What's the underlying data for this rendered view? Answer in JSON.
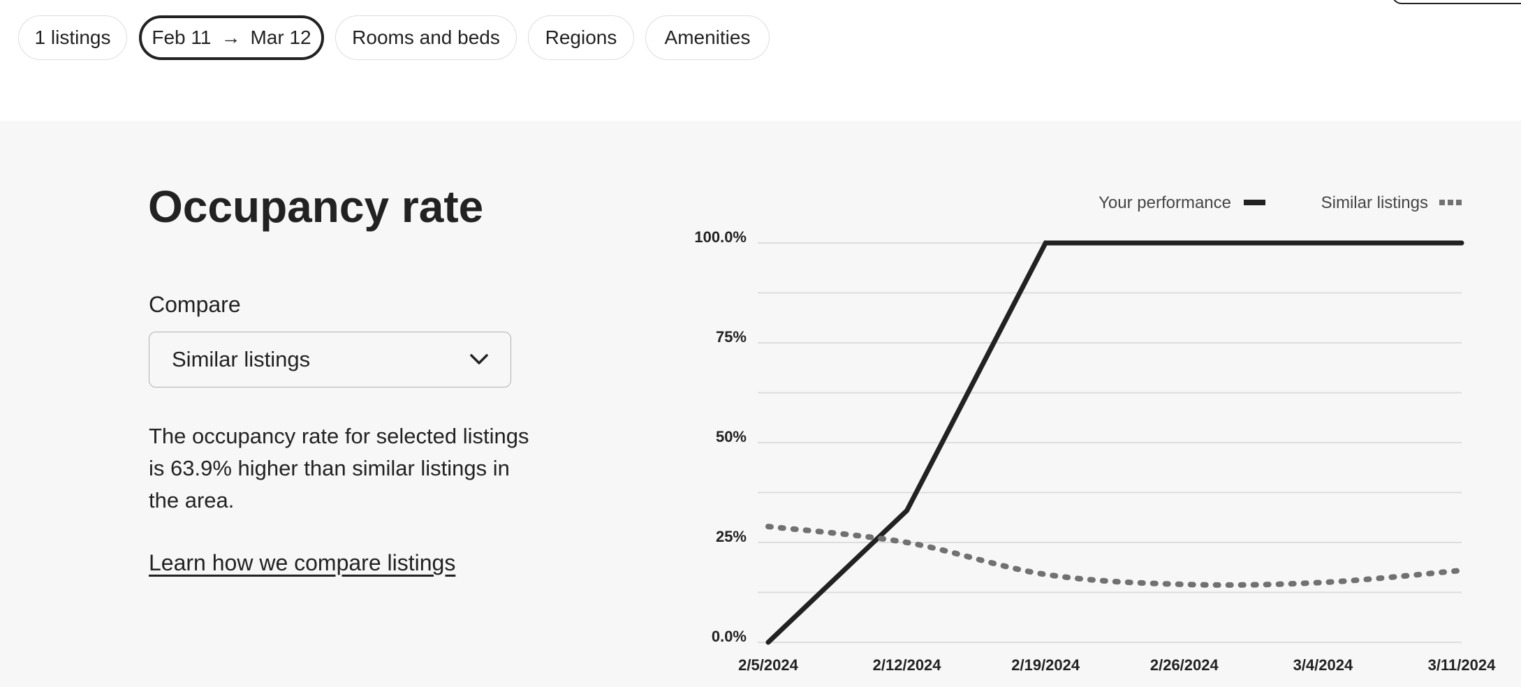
{
  "filters": {
    "listings": "1 listings",
    "date_from": "Feb 11",
    "date_to": "Mar 12",
    "rooms": "Rooms and beds",
    "regions": "Regions",
    "amenities": "Amenities"
  },
  "page": {
    "title": "Occupancy rate",
    "compare_label": "Compare",
    "compare_value": "Similar listings",
    "summary": "The occupancy rate for selected listings is 63.9% higher than similar listings in the area.",
    "learn_link": "Learn how we compare listings"
  },
  "chart_data": {
    "type": "line",
    "x": [
      "2/5/2024",
      "2/12/2024",
      "2/19/2024",
      "2/26/2024",
      "3/4/2024",
      "3/11/2024"
    ],
    "series": [
      {
        "name": "Your performance",
        "style": "solid",
        "color": "#222222",
        "values": [
          0,
          33,
          100,
          100,
          100,
          100
        ]
      },
      {
        "name": "Similar listings",
        "style": "dotted",
        "color": "#717171",
        "values": [
          29,
          25,
          17,
          14.5,
          15,
          18
        ]
      }
    ],
    "y_ticks": [
      {
        "value": 100,
        "label": "100.0%"
      },
      {
        "value": 75,
        "label": "75%"
      },
      {
        "value": 50,
        "label": "50%"
      },
      {
        "value": 25,
        "label": "25%"
      },
      {
        "value": 0,
        "label": "0.0%"
      }
    ],
    "ylim": [
      0,
      100
    ],
    "grid_step": 12.5,
    "grid": true,
    "legend": "top-right"
  }
}
